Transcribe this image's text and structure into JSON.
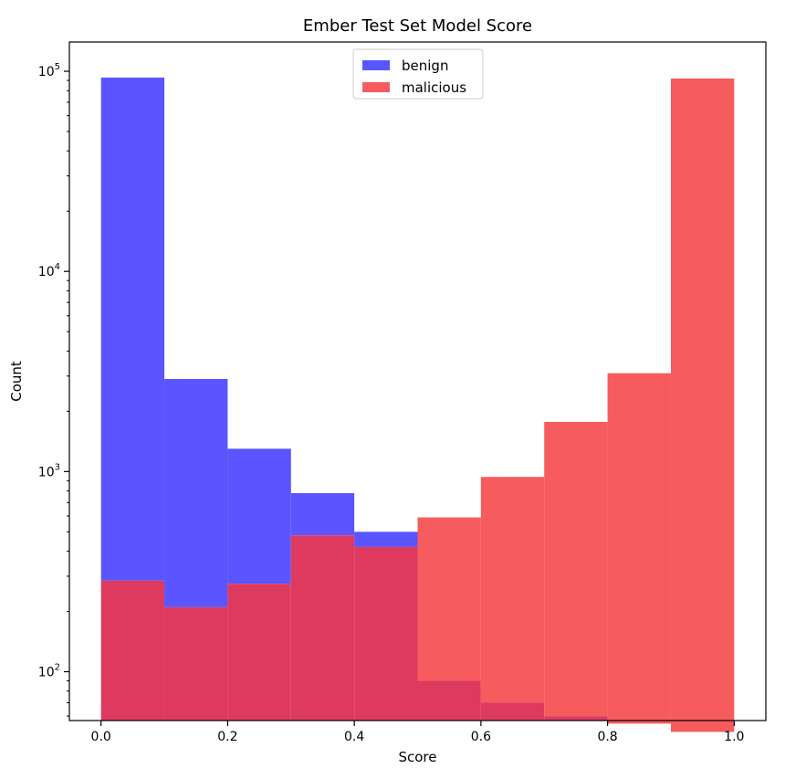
{
  "chart_data": {
    "type": "bar",
    "title": "Ember Test Set Model Score",
    "xlabel": "Score",
    "ylabel": "Count",
    "yscale": "log",
    "xlim": [
      -0.05,
      1.05
    ],
    "ylim": [
      57,
      140000
    ],
    "bin_edges": [
      0.0,
      0.1,
      0.2,
      0.3,
      0.4,
      0.5,
      0.6,
      0.7,
      0.8,
      0.9,
      1.0
    ],
    "xticks": [
      "0.0",
      "0.2",
      "0.4",
      "0.6",
      "0.8",
      "1.0"
    ],
    "xtick_values": [
      0.0,
      0.2,
      0.4,
      0.6,
      0.8,
      1.0
    ],
    "yticks": [
      {
        "value": 100,
        "base": "10",
        "exp": "2"
      },
      {
        "value": 1000,
        "base": "10",
        "exp": "3"
      },
      {
        "value": 10000,
        "base": "10",
        "exp": "4"
      },
      {
        "value": 100000,
        "base": "10",
        "exp": "5"
      }
    ],
    "legend_position": "top-center",
    "series": [
      {
        "name": "benign",
        "color": "#5a55ff",
        "values": [
          93000,
          2900,
          1300,
          780,
          500,
          90,
          70,
          60,
          55,
          50
        ]
      },
      {
        "name": "malicious",
        "color": "#f65c5e",
        "values": [
          285,
          210,
          275,
          480,
          420,
          590,
          940,
          1770,
          3100,
          92000
        ]
      }
    ],
    "overlap_color": "#de3a60"
  }
}
